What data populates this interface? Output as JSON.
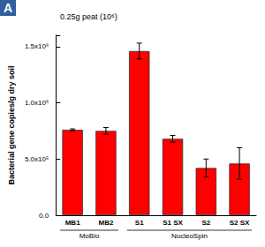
{
  "chart_data": {
    "type": "bar",
    "panel_label": "A",
    "annotations": [
      "0.25g peat (10⁶)"
    ],
    "y_label": "Bacterial gene copies/g dry soil",
    "categories": [
      "MB1",
      "MB2",
      "S1",
      "S1 SX",
      "S2",
      "S2 SX"
    ],
    "values": [
      760000,
      750000,
      1460000,
      680000,
      420000,
      460000
    ],
    "errors": [
      8000,
      30000,
      70000,
      30000,
      80000,
      140000
    ],
    "groups": [
      {
        "label": "MoBio",
        "categories": [
          "MB1",
          "MB2"
        ]
      },
      {
        "label": "NucleoSpin",
        "categories": [
          "S1",
          "S1 SX",
          "S2",
          "S2 SX"
        ]
      }
    ],
    "color": "#ff0000",
    "ylim": [
      0,
      1600000
    ],
    "yticks": [
      {
        "value": 0,
        "label": "0.0"
      },
      {
        "value": 500000,
        "label": "5.0x10⁵"
      },
      {
        "value": 1000000,
        "label": "1.0x10⁶"
      },
      {
        "value": 1500000,
        "label": "1.5x10⁶"
      }
    ],
    "grid": false
  }
}
